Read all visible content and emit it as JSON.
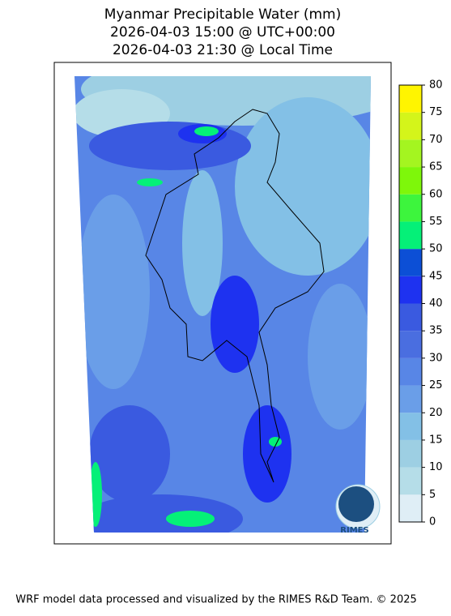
{
  "title": [
    "Myanmar Precipitable Water (mm)",
    "2026-04-03 15:00 @ UTC+00:00",
    "2026-04-03 21:30 @ Local Time"
  ],
  "colorbar": {
    "lim": [
      0,
      80
    ],
    "ticks": [
      0,
      5,
      10,
      15,
      20,
      25,
      30,
      35,
      40,
      45,
      50,
      55,
      60,
      65,
      70,
      75,
      80
    ],
    "colors": [
      "#dfeef6",
      "#b5dde8",
      "#9dcfe3",
      "#83c0e6",
      "#6a9ee8",
      "#5886e6",
      "#4a6ee0",
      "#3a5ae0",
      "#1e32f0",
      "#0c4fd6",
      "#05f078",
      "#3df53d",
      "#7ef70a",
      "#a4f520",
      "#d4f51a",
      "#fff500",
      "#ffd000"
    ]
  },
  "logo": "RIMES",
  "footer": "WRF model data processed and visualized by the RIMES R&D Team. © 2025"
}
